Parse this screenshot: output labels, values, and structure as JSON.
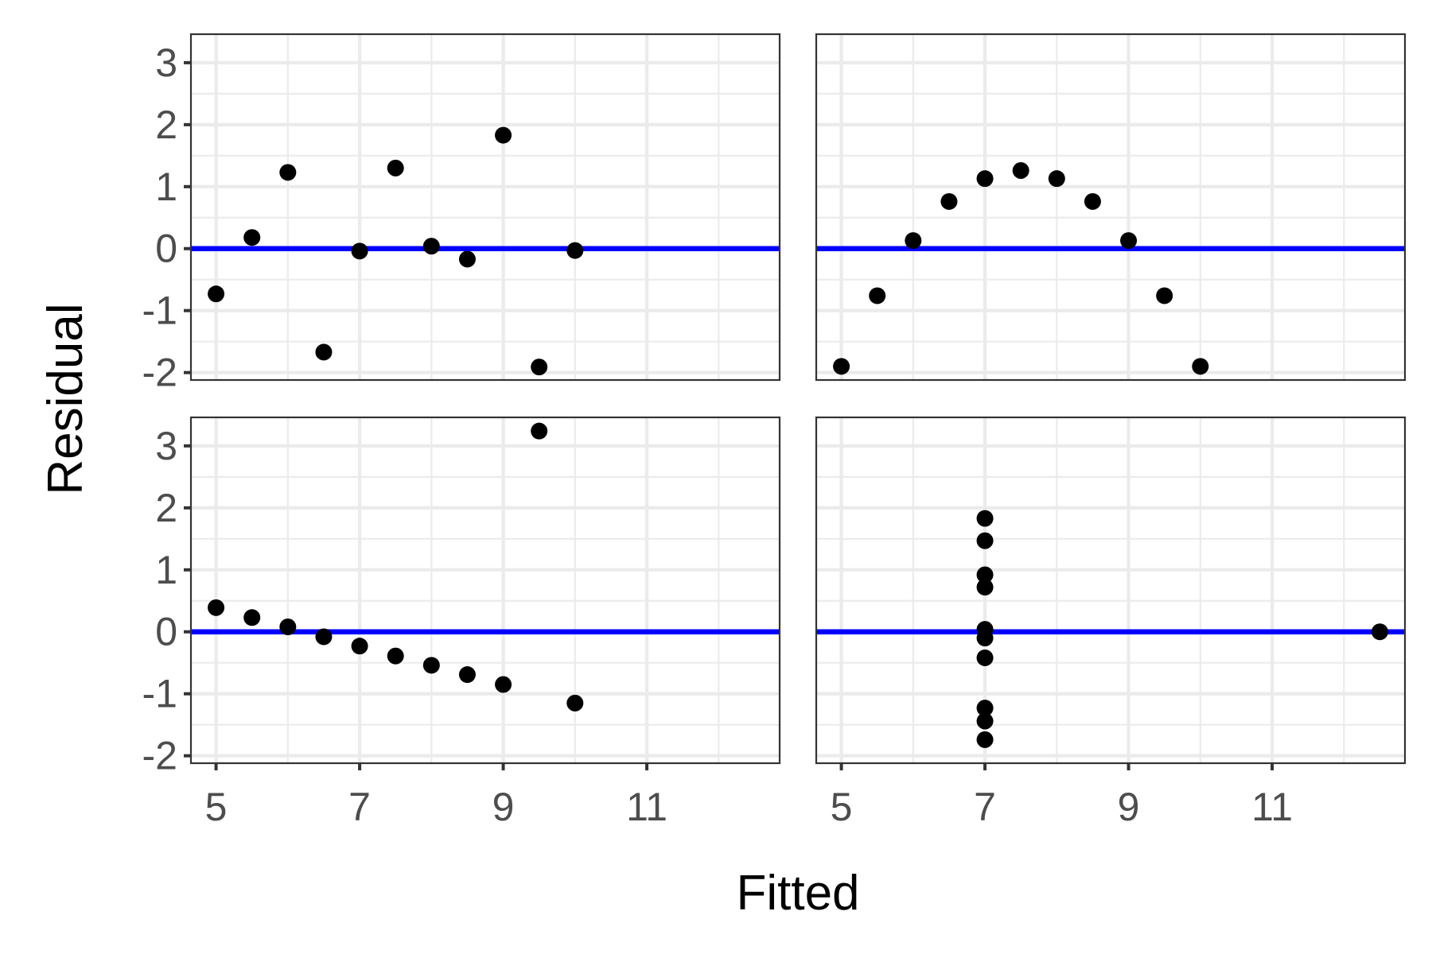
{
  "chart_data": {
    "type": "scatter",
    "xlabel": "Fitted",
    "ylabel": "Residual",
    "xlim": [
      4.65,
      12.85
    ],
    "ylim": [
      -2.12,
      3.46
    ],
    "x_ticks": [
      5,
      7,
      9,
      11
    ],
    "y_ticks": [
      -2,
      -1,
      0,
      1,
      2,
      3
    ],
    "x_tick_labels": [
      "5",
      "7",
      "9",
      "11"
    ],
    "y_tick_labels": [
      "-2",
      "-1",
      "0",
      "1",
      "2",
      "3"
    ],
    "grid": true,
    "facet_layout": "2x2",
    "colors": {
      "points": "#000000",
      "reference_line": "#0000ff"
    },
    "reference_line_y": 0,
    "panels": [
      {
        "position": "top-left",
        "points": [
          {
            "x": 5.0,
            "y": -0.73
          },
          {
            "x": 5.5,
            "y": 0.18
          },
          {
            "x": 6.0,
            "y": 1.23
          },
          {
            "x": 6.5,
            "y": -1.67
          },
          {
            "x": 7.0,
            "y": -0.04
          },
          {
            "x": 7.5,
            "y": 1.3
          },
          {
            "x": 8.0,
            "y": 0.04
          },
          {
            "x": 8.5,
            "y": -0.17
          },
          {
            "x": 9.0,
            "y": 1.83
          },
          {
            "x": 9.5,
            "y": -1.91
          },
          {
            "x": 10.0,
            "y": -0.03
          }
        ]
      },
      {
        "position": "top-right",
        "points": [
          {
            "x": 5.0,
            "y": -1.9
          },
          {
            "x": 5.5,
            "y": -0.76
          },
          {
            "x": 6.0,
            "y": 0.13
          },
          {
            "x": 6.5,
            "y": 0.76
          },
          {
            "x": 7.0,
            "y": 1.13
          },
          {
            "x": 7.5,
            "y": 1.26
          },
          {
            "x": 8.0,
            "y": 1.13
          },
          {
            "x": 8.5,
            "y": 0.76
          },
          {
            "x": 9.0,
            "y": 0.13
          },
          {
            "x": 9.5,
            "y": -0.76
          },
          {
            "x": 10.0,
            "y": -1.9
          }
        ]
      },
      {
        "position": "bottom-left",
        "points": [
          {
            "x": 5.0,
            "y": 0.39
          },
          {
            "x": 5.5,
            "y": 0.23
          },
          {
            "x": 6.0,
            "y": 0.08
          },
          {
            "x": 6.5,
            "y": -0.08
          },
          {
            "x": 7.0,
            "y": -0.23
          },
          {
            "x": 7.5,
            "y": -0.39
          },
          {
            "x": 8.0,
            "y": -0.54
          },
          {
            "x": 8.5,
            "y": -0.69
          },
          {
            "x": 9.0,
            "y": -0.85
          },
          {
            "x": 9.5,
            "y": 3.24
          },
          {
            "x": 10.0,
            "y": -1.15
          }
        ]
      },
      {
        "position": "bottom-right",
        "points": [
          {
            "x": 7.0,
            "y": 1.83
          },
          {
            "x": 7.0,
            "y": 1.47
          },
          {
            "x": 7.0,
            "y": 0.92
          },
          {
            "x": 7.0,
            "y": 0.72
          },
          {
            "x": 7.0,
            "y": 0.04
          },
          {
            "x": 7.0,
            "y": -0.1
          },
          {
            "x": 7.0,
            "y": -0.42
          },
          {
            "x": 7.0,
            "y": -1.23
          },
          {
            "x": 7.0,
            "y": -1.44
          },
          {
            "x": 7.0,
            "y": -1.74
          },
          {
            "x": 12.5,
            "y": 0.0
          }
        ]
      }
    ]
  }
}
